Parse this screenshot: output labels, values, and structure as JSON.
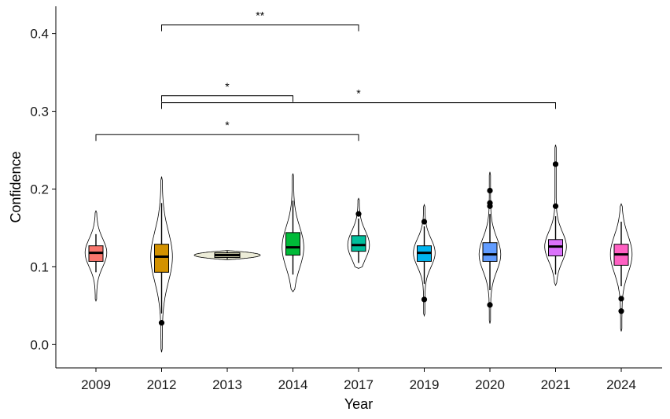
{
  "chart_data": {
    "type": "box",
    "xlabel": "Year",
    "ylabel": "Confidence",
    "ylim": [
      -0.03,
      0.435
    ],
    "yticks": [
      0.0,
      0.1,
      0.2,
      0.3,
      0.4
    ],
    "ytick_labels": [
      "0.0",
      "0.1",
      "0.2",
      "0.3",
      "0.4"
    ],
    "categories": [
      "2009",
      "2012",
      "2013",
      "2014",
      "2017",
      "2019",
      "2020",
      "2021",
      "2024"
    ],
    "groups": [
      {
        "year": "2009",
        "color": "#F8766D",
        "q1": 0.107,
        "median": 0.118,
        "q3": 0.127,
        "whisker_low": 0.093,
        "whisker_high": 0.142,
        "violin_min": 0.056,
        "violin_max": 0.172,
        "outliers": []
      },
      {
        "year": "2012",
        "color": "#D39200",
        "q1": 0.093,
        "median": 0.113,
        "q3": 0.129,
        "whisker_low": 0.04,
        "whisker_high": 0.182,
        "violin_min": -0.01,
        "violin_max": 0.216,
        "outliers": [
          0.028
        ]
      },
      {
        "year": "2013",
        "color": "#C3C3A0",
        "q1": 0.112,
        "median": 0.115,
        "q3": 0.118,
        "whisker_low": 0.11,
        "whisker_high": 0.12,
        "violin_min": 0.109,
        "violin_max": 0.121,
        "outliers": []
      },
      {
        "year": "2014",
        "color": "#00BA38",
        "q1": 0.115,
        "median": 0.125,
        "q3": 0.144,
        "whisker_low": 0.09,
        "whisker_high": 0.185,
        "violin_min": 0.068,
        "violin_max": 0.22,
        "outliers": []
      },
      {
        "year": "2017",
        "color": "#00BF9C",
        "q1": 0.12,
        "median": 0.128,
        "q3": 0.14,
        "whisker_low": 0.105,
        "whisker_high": 0.162,
        "violin_min": 0.098,
        "violin_max": 0.188,
        "outliers": [
          0.168
        ]
      },
      {
        "year": "2019",
        "color": "#00B4EF",
        "q1": 0.107,
        "median": 0.118,
        "q3": 0.127,
        "whisker_low": 0.078,
        "whisker_high": 0.152,
        "violin_min": 0.037,
        "violin_max": 0.18,
        "outliers": [
          0.158,
          0.058
        ]
      },
      {
        "year": "2020",
        "color": "#619CFF",
        "q1": 0.107,
        "median": 0.116,
        "q3": 0.131,
        "whisker_low": 0.07,
        "whisker_high": 0.168,
        "violin_min": 0.027,
        "violin_max": 0.222,
        "outliers": [
          0.198,
          0.182,
          0.178,
          0.051
        ]
      },
      {
        "year": "2021",
        "color": "#DB72FB",
        "q1": 0.114,
        "median": 0.126,
        "q3": 0.135,
        "whisker_low": 0.09,
        "whisker_high": 0.165,
        "violin_min": 0.076,
        "violin_max": 0.257,
        "outliers": [
          0.232,
          0.178
        ]
      },
      {
        "year": "2024",
        "color": "#FF61C3",
        "q1": 0.102,
        "median": 0.116,
        "q3": 0.129,
        "whisker_low": 0.075,
        "whisker_high": 0.158,
        "violin_min": 0.017,
        "violin_max": 0.181,
        "outliers": [
          0.059,
          0.043
        ]
      }
    ],
    "significance": [
      {
        "from": "2012",
        "to": "2017",
        "y": 0.411,
        "label": "**"
      },
      {
        "from": "2012",
        "to": "2014",
        "y": 0.32,
        "label": "*"
      },
      {
        "from": "2012",
        "to": "2021",
        "y": 0.311,
        "label": "*"
      },
      {
        "from": "2009",
        "to": "2017",
        "y": 0.27,
        "label": "*"
      }
    ]
  }
}
